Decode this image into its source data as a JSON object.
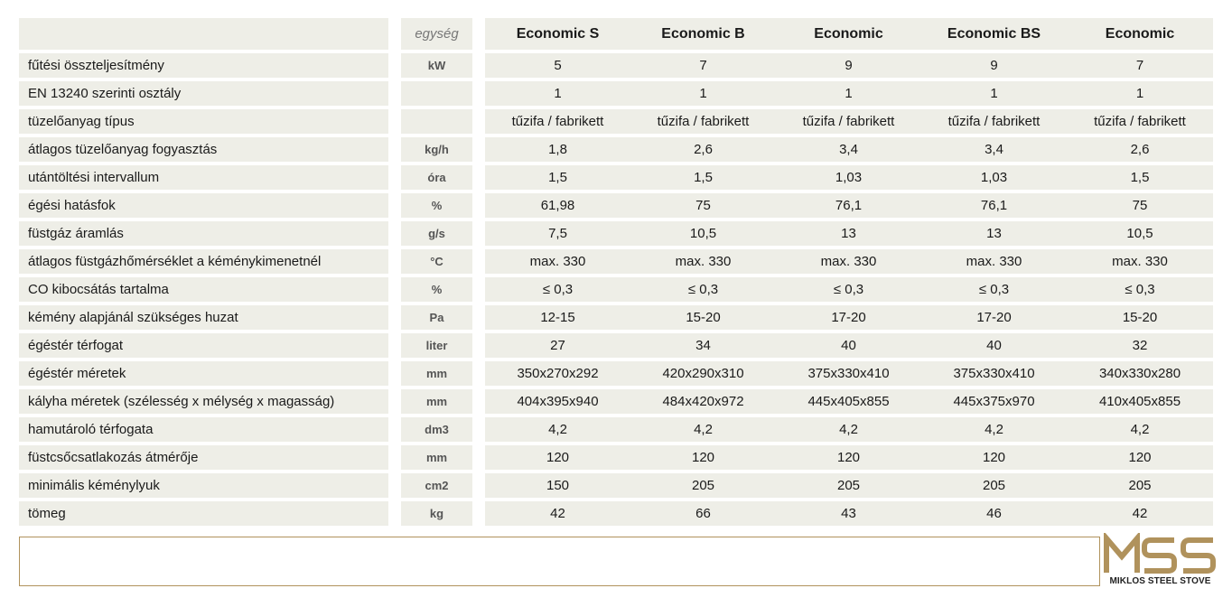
{
  "header": {
    "unit_label": "egység",
    "models": [
      "Economic S",
      "Economic B",
      "Economic",
      "Economic BS",
      "Economic"
    ]
  },
  "rows": [
    {
      "label": "fűtési összteljesítmény",
      "unit": "kW",
      "values": [
        "5",
        "7",
        "9",
        "9",
        "7"
      ]
    },
    {
      "label": "EN 13240 szerinti osztály",
      "unit": "",
      "values": [
        "1",
        "1",
        "1",
        "1",
        "1"
      ]
    },
    {
      "label": "tüzelőanyag típus",
      "unit": "",
      "values": [
        "tűzifa / fabrikett",
        "tűzifa / fabrikett",
        "tűzifa / fabrikett",
        "tűzifa / fabrikett",
        "tűzifa / fabrikett"
      ]
    },
    {
      "label": "átlagos tüzelőanyag fogyasztás",
      "unit": "kg/h",
      "values": [
        "1,8",
        "2,6",
        "3,4",
        "3,4",
        "2,6"
      ]
    },
    {
      "label": "utántöltési intervallum",
      "unit": "óra",
      "values": [
        "1,5",
        "1,5",
        "1,03",
        "1,03",
        "1,5"
      ]
    },
    {
      "label": "égési hatásfok",
      "unit": "%",
      "values": [
        "61,98",
        "75",
        "76,1",
        "76,1",
        "75"
      ]
    },
    {
      "label": "füstgáz áramlás",
      "unit": "g/s",
      "values": [
        "7,5",
        "10,5",
        "13",
        "13",
        "10,5"
      ]
    },
    {
      "label": "átlagos füstgázhőmérséklet a kéménykimenetnél",
      "unit": "°C",
      "values": [
        "max. 330",
        "max. 330",
        "max. 330",
        "max. 330",
        "max. 330"
      ]
    },
    {
      "label": "CO kibocsátás tartalma",
      "unit": "%",
      "values": [
        "≤ 0,3",
        "≤ 0,3",
        "≤ 0,3",
        "≤ 0,3",
        "≤ 0,3"
      ]
    },
    {
      "label": "kémény alapjánál szükséges huzat",
      "unit": "Pa",
      "values": [
        "12-15",
        "15-20",
        "17-20",
        "17-20",
        "15-20"
      ]
    },
    {
      "label": "égéstér térfogat",
      "unit": "liter",
      "values": [
        "27",
        "34",
        "40",
        "40",
        "32"
      ]
    },
    {
      "label": "égéstér méretek",
      "unit": "mm",
      "values": [
        "350x270x292",
        "420x290x310",
        "375x330x410",
        "375x330x410",
        "340x330x280"
      ]
    },
    {
      "label": "kályha méretek (szélesség x mélység x magasság)",
      "unit": "mm",
      "values": [
        "404x395x940",
        "484x420x972",
        "445x405x855",
        "445x375x970",
        "410x405x855"
      ]
    },
    {
      "label": "hamutároló térfogata",
      "unit": "dm3",
      "values": [
        "4,2",
        "4,2",
        "4,2",
        "4,2",
        "4,2"
      ]
    },
    {
      "label": "füstcsőcsatlakozás átmérője",
      "unit": "mm",
      "values": [
        "120",
        "120",
        "120",
        "120",
        "120"
      ]
    },
    {
      "label": "minimális kéménylyuk",
      "unit": "cm2",
      "values": [
        "150",
        "205",
        "205",
        "205",
        "205"
      ]
    },
    {
      "label": "tömeg",
      "unit": "kg",
      "values": [
        "42",
        "66",
        "43",
        "46",
        "42"
      ]
    }
  ],
  "logo": {
    "mark": "MSS",
    "text": "MIKLOS STEEL STOVE",
    "color": "#b0925c"
  }
}
